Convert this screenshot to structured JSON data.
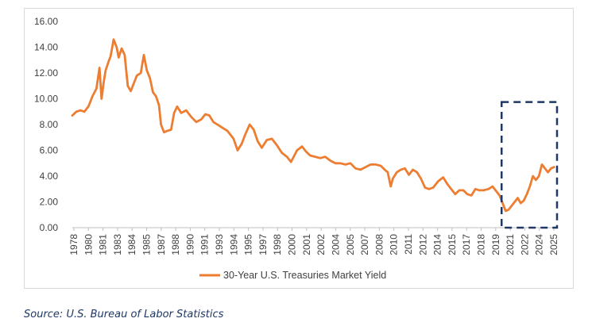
{
  "chart_data": {
    "type": "line",
    "title": "",
    "xlabel": "",
    "ylabel": "",
    "ylim": [
      0,
      16
    ],
    "y_ticks": [
      "0.00",
      "2.00",
      "4.00",
      "6.00",
      "8.00",
      "10.00",
      "12.00",
      "14.00",
      "16.00"
    ],
    "x_tick_labels": [
      "1978",
      "1980",
      "1981",
      "1983",
      "1984",
      "1985",
      "1987",
      "1988",
      "1990",
      "1991",
      "1993",
      "1994",
      "1995",
      "1997",
      "1998",
      "2000",
      "2001",
      "2002",
      "2004",
      "2005",
      "2007",
      "2008",
      "2010",
      "2011",
      "2012",
      "2014",
      "2015",
      "2017",
      "2018",
      "2019",
      "2021",
      "2022",
      "2024",
      "2025"
    ],
    "grid": false,
    "legend_position": "bottom",
    "series": [
      {
        "name": "30-Year U.S. Treasuries Market Yield",
        "color": "#ed7d31",
        "x": [
          1977.2,
          1977.6,
          1978.0,
          1978.4,
          1978.8,
          1979.2,
          1979.6,
          1979.9,
          1980.1,
          1980.3,
          1980.5,
          1980.8,
          1981.0,
          1981.3,
          1981.6,
          1981.8,
          1982.1,
          1982.4,
          1982.7,
          1983.0,
          1983.3,
          1983.6,
          1984.0,
          1984.3,
          1984.6,
          1984.9,
          1985.2,
          1985.5,
          1985.8,
          1986.0,
          1986.3,
          1986.6,
          1987.0,
          1987.3,
          1987.6,
          1988.0,
          1988.5,
          1989.0,
          1989.5,
          1990.0,
          1990.4,
          1990.8,
          1991.2,
          1991.6,
          1992.0,
          1992.6,
          1993.2,
          1993.6,
          1994.0,
          1994.4,
          1994.8,
          1995.2,
          1995.6,
          1996.0,
          1996.5,
          1997.0,
          1997.5,
          1998.0,
          1998.5,
          1998.9,
          1999.5,
          2000.0,
          2000.4,
          2000.8,
          2001.3,
          2001.8,
          2002.3,
          2002.8,
          2003.3,
          2003.8,
          2004.3,
          2004.8,
          2005.3,
          2005.8,
          2006.3,
          2006.8,
          2007.3,
          2007.8,
          2008.2,
          2008.5,
          2008.8,
          2009.0,
          2009.4,
          2009.8,
          2010.2,
          2010.6,
          2011.0,
          2011.4,
          2011.8,
          2012.2,
          2012.6,
          2013.0,
          2013.5,
          2014.0,
          2014.4,
          2014.8,
          2015.2,
          2015.6,
          2016.0,
          2016.4,
          2016.8,
          2017.2,
          2017.6,
          2018.0,
          2018.5,
          2018.9,
          2019.3,
          2019.6,
          2019.9,
          2020.2,
          2020.5,
          2020.8,
          2021.1,
          2021.4,
          2021.7,
          2022.0,
          2022.3,
          2022.6,
          2022.9,
          2023.2,
          2023.5,
          2023.8,
          2024.1,
          2024.4,
          2024.7,
          2025.0
        ],
        "values": [
          8.7,
          9.0,
          9.1,
          9.0,
          9.4,
          10.2,
          10.8,
          12.4,
          10.0,
          11.2,
          12.2,
          12.9,
          13.3,
          14.6,
          14.0,
          13.2,
          13.9,
          13.4,
          11.0,
          10.6,
          11.2,
          11.8,
          12.0,
          13.4,
          12.2,
          11.6,
          10.5,
          10.2,
          9.5,
          8.0,
          7.4,
          7.5,
          7.6,
          8.9,
          9.4,
          8.9,
          9.1,
          8.6,
          8.2,
          8.4,
          8.8,
          8.7,
          8.2,
          8.0,
          7.8,
          7.5,
          6.9,
          6.0,
          6.5,
          7.3,
          8.0,
          7.6,
          6.7,
          6.2,
          6.8,
          6.9,
          6.4,
          5.8,
          5.5,
          5.1,
          6.0,
          6.3,
          5.9,
          5.6,
          5.5,
          5.4,
          5.5,
          5.2,
          5.0,
          5.0,
          4.9,
          5.0,
          4.6,
          4.5,
          4.7,
          4.9,
          4.9,
          4.8,
          4.5,
          4.3,
          3.2,
          3.8,
          4.3,
          4.5,
          4.6,
          4.1,
          4.5,
          4.3,
          3.8,
          3.1,
          3.0,
          3.1,
          3.6,
          3.9,
          3.4,
          3.0,
          2.6,
          2.9,
          2.9,
          2.6,
          2.5,
          3.0,
          2.9,
          2.9,
          3.0,
          3.2,
          2.8,
          2.5,
          1.9,
          1.3,
          1.4,
          1.7,
          2.0,
          2.3,
          1.9,
          2.1,
          2.6,
          3.2,
          4.0,
          3.7,
          4.0,
          4.9,
          4.6,
          4.3,
          4.6,
          4.7
        ]
      }
    ],
    "annotations": [
      {
        "kind": "dashed-box",
        "color": "#1f3864",
        "x_range": [
          2019.8,
          2025.3
        ],
        "y_range": [
          0.0,
          9.75
        ]
      }
    ]
  },
  "source_note": "Source: U.S. Bureau of Labor Statistics"
}
